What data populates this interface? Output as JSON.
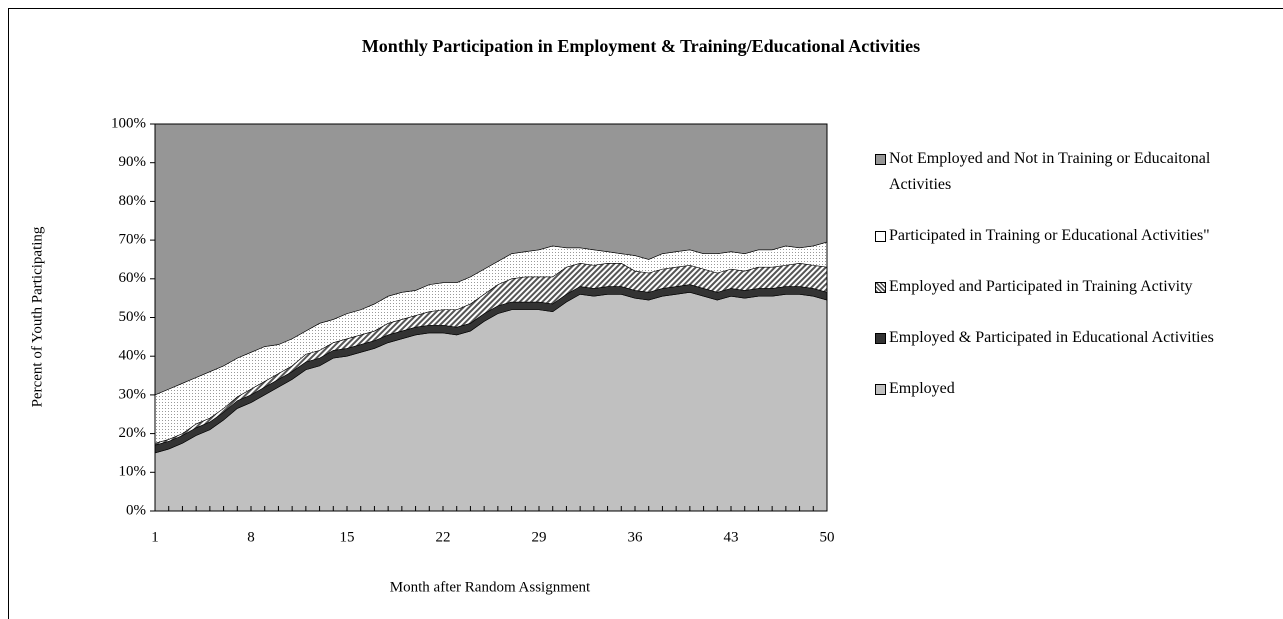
{
  "chart_data": {
    "type": "stacked-area",
    "title": "Monthly Participation in  Employment & Training/Educational Activities",
    "x_label": "Month after Random Assignment",
    "y_label": "Percent of Youth Participating",
    "x": [
      1,
      2,
      3,
      4,
      5,
      6,
      7,
      8,
      9,
      10,
      11,
      12,
      13,
      14,
      15,
      16,
      17,
      18,
      19,
      20,
      21,
      22,
      23,
      24,
      25,
      26,
      27,
      28,
      29,
      30,
      31,
      32,
      33,
      34,
      35,
      36,
      37,
      38,
      39,
      40,
      41,
      42,
      43,
      44,
      45,
      46,
      47,
      48,
      49,
      50
    ],
    "xlim": [
      1,
      50
    ],
    "xticks": [
      1,
      8,
      15,
      22,
      29,
      36,
      43,
      50
    ],
    "ylim": [
      0,
      100
    ],
    "yticks": [
      {
        "value": 0,
        "label": "0%"
      },
      {
        "value": 10,
        "label": "10%"
      },
      {
        "value": 20,
        "label": "20%"
      },
      {
        "value": 30,
        "label": "30%"
      },
      {
        "value": 40,
        "label": "40%"
      },
      {
        "value": 50,
        "label": "50%"
      },
      {
        "value": 60,
        "label": "60%"
      },
      {
        "value": 70,
        "label": "70%"
      },
      {
        "value": 80,
        "label": "80%"
      },
      {
        "value": 90,
        "label": "90%"
      },
      {
        "value": 100,
        "label": "100%"
      }
    ],
    "legend_position": "right",
    "series": [
      {
        "name": "Employed",
        "color": "#c0c0c0",
        "pattern": "solid",
        "values": [
          15,
          16,
          17.5,
          19.5,
          21,
          23.5,
          26.5,
          28,
          30,
          32,
          34,
          36.5,
          37.5,
          39.5,
          40,
          41,
          42,
          43.5,
          44.5,
          45.5,
          46,
          46,
          45.5,
          46.5,
          49,
          51,
          52,
          52,
          52,
          51.5,
          54,
          56,
          55.5,
          56,
          56,
          55,
          54.5,
          55.5,
          56,
          56.5,
          55.5,
          54.5,
          55.5,
          55,
          55.5,
          55.5,
          56,
          56,
          55.5,
          54.5
        ]
      },
      {
        "name": "Employed & Participated in Educational Activities",
        "color": "#333333",
        "pattern": "solid",
        "values": [
          2,
          2,
          2,
          2,
          2,
          2,
          2,
          2,
          2,
          2,
          2,
          2,
          2,
          2,
          2,
          2,
          2,
          2,
          2,
          2,
          2,
          2,
          2,
          2,
          2,
          2,
          2,
          2,
          2,
          2,
          2,
          2,
          2,
          2,
          2,
          2,
          2,
          2,
          2,
          2,
          2,
          2,
          2,
          2,
          2,
          2,
          2,
          2,
          2,
          2
        ]
      },
      {
        "name": "Employed and Participated in Training Activity",
        "color": "#808080",
        "pattern": "hatch",
        "values": [
          0.5,
          0.5,
          0.5,
          1,
          1,
          1,
          1,
          1.5,
          1.5,
          1.5,
          1.5,
          2,
          2,
          2,
          2.5,
          2.5,
          2.5,
          3,
          3,
          3,
          3.5,
          4,
          4.5,
          5,
          5,
          5.5,
          6,
          6.5,
          6.5,
          7,
          7,
          6,
          6,
          6,
          6,
          5,
          5,
          5,
          5,
          5,
          5,
          5,
          5,
          5,
          5.5,
          5.5,
          5.5,
          6,
          6,
          6.5
        ]
      },
      {
        "name": "Participated in Training or Educational Activities\"",
        "color": "#ffffff",
        "pattern": "dots",
        "values": [
          12.5,
          13,
          13,
          12,
          12,
          11,
          10,
          9.5,
          9,
          7.5,
          7,
          6,
          7,
          6,
          6.5,
          6.5,
          7,
          7,
          7,
          6.5,
          7,
          7,
          7,
          7,
          6.5,
          6,
          6.5,
          6.5,
          7,
          8,
          5,
          4,
          4,
          3,
          2.5,
          4,
          3.5,
          4,
          4,
          4,
          4,
          5,
          4.5,
          4.5,
          4.5,
          4.5,
          5,
          4,
          5,
          6.5
        ]
      },
      {
        "name": "Not Employed and Not in Training or Educaitonal Activities",
        "color": "#969696",
        "pattern": "solid",
        "values": [
          70,
          68.5,
          67,
          65.5,
          64,
          62.5,
          60.5,
          59,
          57.5,
          57,
          55.5,
          53.5,
          51.5,
          50.5,
          49,
          48,
          46.5,
          44.5,
          43.5,
          43,
          41.5,
          41,
          41,
          39.5,
          37.5,
          35.5,
          33.5,
          33,
          32.5,
          31.5,
          32,
          32,
          32.5,
          33,
          33.5,
          34,
          35,
          33.5,
          33,
          32.5,
          33.5,
          33.5,
          33,
          33.5,
          32.5,
          32.5,
          31.5,
          32,
          31.5,
          30.5
        ]
      }
    ]
  }
}
